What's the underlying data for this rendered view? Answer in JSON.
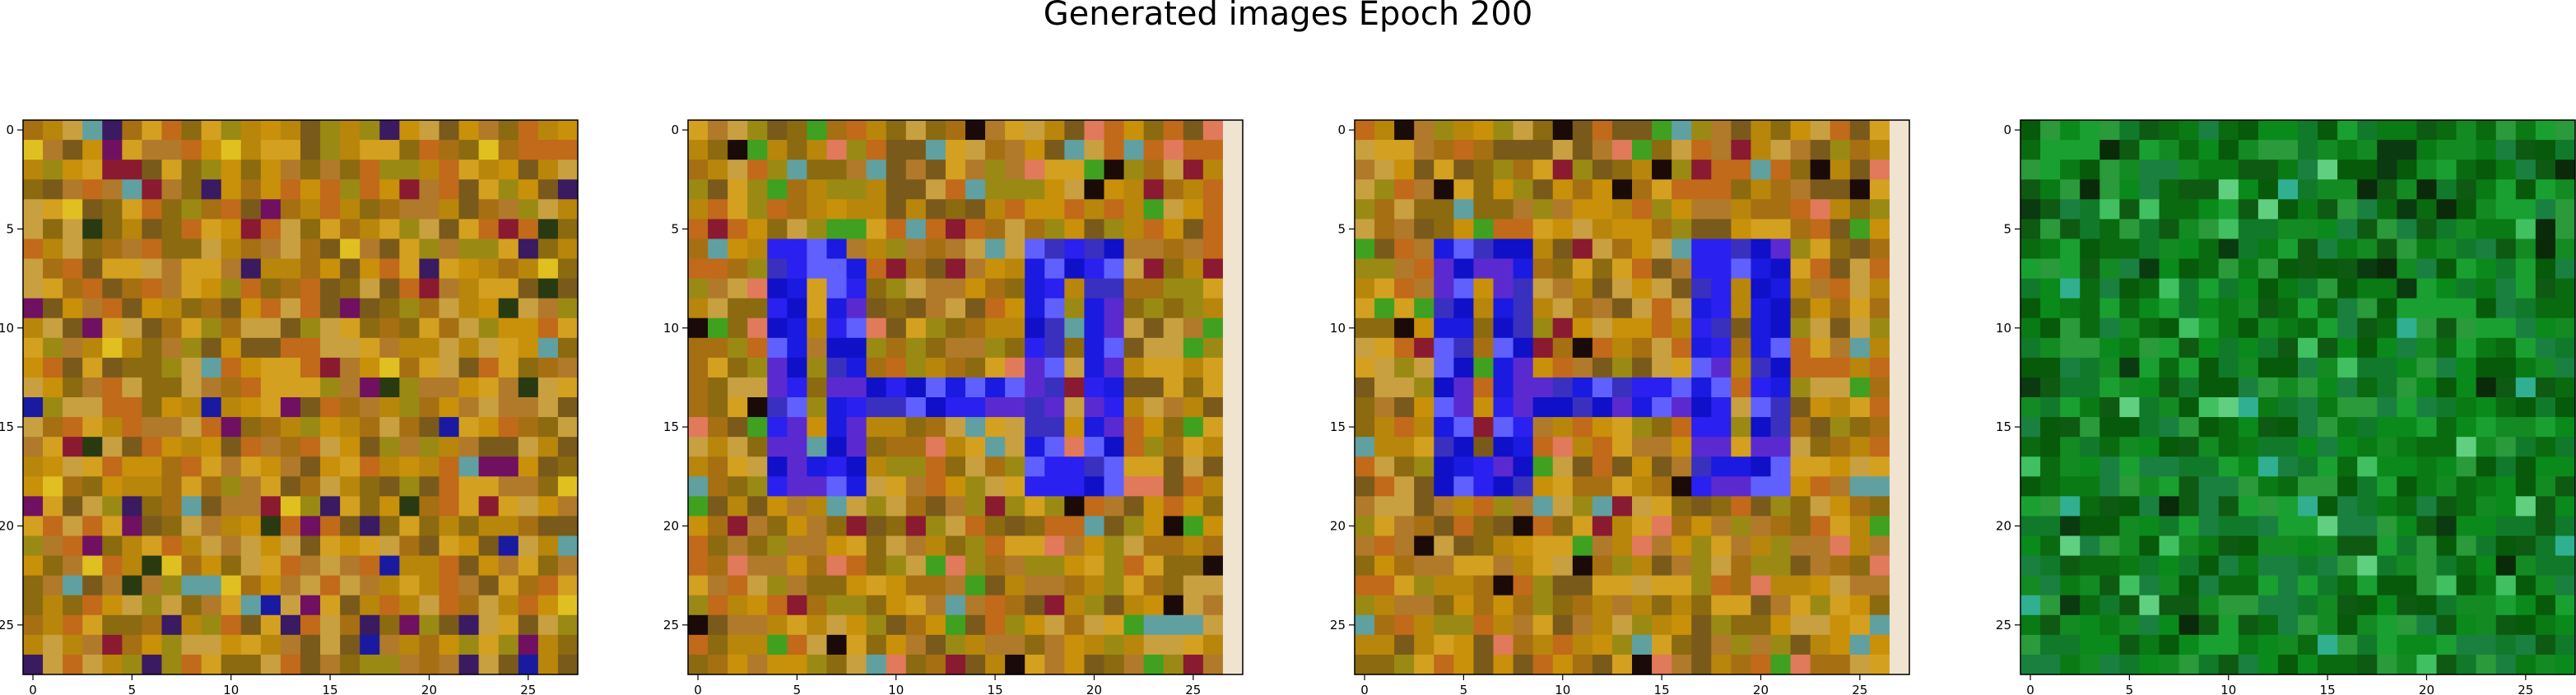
{
  "figure": {
    "title": "Generated images Epoch 200"
  },
  "chart_data": [
    {
      "type": "heatmap",
      "description_id": "panel-1",
      "grid_size": [
        28,
        28
      ],
      "x_ticks": [
        0,
        5,
        10,
        15,
        20,
        25
      ],
      "y_ticks": [
        0,
        5,
        10,
        15,
        20,
        25
      ],
      "xlim": [
        -0.5,
        27.5
      ],
      "ylim": [
        27.5,
        -0.5
      ],
      "palette": [
        "#b8860b",
        "#c9900a",
        "#a66f12",
        "#d4a020",
        "#8b6a10",
        "#b07a2a",
        "#c06a1a",
        "#9a8a14",
        "#c8a040",
        "#7a5a1a"
      ],
      "accents": [
        "#8a1a30",
        "#3a1a60",
        "#1a1aa0",
        "#701060",
        "#e0c020",
        "#60a0a0",
        "#2a3a10"
      ],
      "accent_rate": 0.12,
      "seed": 11
    },
    {
      "type": "heatmap",
      "description_id": "panel-2",
      "grid_size": [
        28,
        28
      ],
      "x_ticks": [
        0,
        5,
        10,
        15,
        20,
        25
      ],
      "y_ticks": [
        0,
        5,
        10,
        15,
        20,
        25
      ],
      "xlim": [
        -0.5,
        27.5
      ],
      "ylim": [
        27.5,
        -0.5
      ],
      "palette": [
        "#b8860b",
        "#c9900a",
        "#a66f12",
        "#d4a020",
        "#8b6a10",
        "#b07a2a",
        "#c06a1a",
        "#9a8a14",
        "#c8a040",
        "#7a5a1a"
      ],
      "accents": [
        "#8a1a30",
        "#1a0a08",
        "#e07a5a",
        "#40a020",
        "#60a0a0"
      ],
      "accent_rate": 0.1,
      "glyph_colors": [
        "#1a1ae0",
        "#2a20f0",
        "#3a30c0",
        "#6060ff",
        "#1010c8",
        "#5a2ad0"
      ],
      "glyph_rows": [
        "                            ",
        "                            ",
        "                            ",
        "                            ",
        "                            ",
        "                            ",
        "    ####         #####      ",
        "    #####        #####      ",
        "    ## ##        ## ##      ",
        "    ## ##        ## ##      ",
        "    ## ##        ## ##      ",
        "    ## ##        ## ##      ",
        "    ## ##        ## ##      ",
        "    ## ############ ##      ",
        "    ## ############ ##      ",
        "    ## ##        ## ##      ",
        "    ## ##        ## ##      ",
        "    #####        #####      ",
        "    #####        #####      ",
        "                            ",
        "                            ",
        "                            ",
        "                            ",
        "                            ",
        "                            ",
        "                            ",
        "                            ",
        "                            "
      ],
      "right_column_color": "#f0e4d0",
      "seed": 23
    },
    {
      "type": "heatmap",
      "description_id": "panel-3",
      "grid_size": [
        28,
        28
      ],
      "x_ticks": [
        0,
        5,
        10,
        15,
        20,
        25
      ],
      "y_ticks": [
        0,
        5,
        10,
        15,
        20,
        25
      ],
      "xlim": [
        -0.5,
        27.5
      ],
      "ylim": [
        27.5,
        -0.5
      ],
      "palette": [
        "#b8860b",
        "#c9900a",
        "#a66f12",
        "#d4a020",
        "#8b6a10",
        "#b07a2a",
        "#c06a1a",
        "#9a8a14",
        "#c8a040",
        "#7a5a1a"
      ],
      "accents": [
        "#8a1a30",
        "#1a0a08",
        "#e07a5a",
        "#40a020",
        "#60a0a0"
      ],
      "accent_rate": 0.1,
      "glyph_colors": [
        "#1a1ae0",
        "#2a20f0",
        "#3a30c0",
        "#6060ff",
        "#1010c8",
        "#5a2ad0"
      ],
      "glyph_rows": [
        "                            ",
        "                            ",
        "                            ",
        "                            ",
        "                            ",
        "                            ",
        "    #####        #####      ",
        "    #####        #####      ",
        "    ## ##        ## ##      ",
        "    ## ##        ## ##      ",
        "    ## ##        ## ##      ",
        "    ## ##        ## ##      ",
        "    ## ##        ## ##      ",
        "    ## ############ ##      ",
        "    ## ############ ##      ",
        "    ## ##        ## ##      ",
        "    ## ##        ## ##      ",
        "    #####        #####      ",
        "    #####        #####      ",
        "                            ",
        "                            ",
        "                            ",
        "                            ",
        "                            ",
        "                            ",
        "                            ",
        "                            ",
        "                            "
      ],
      "right_column_color": "#f0e4d0",
      "seed": 37
    },
    {
      "type": "heatmap",
      "description_id": "panel-4",
      "grid_size": [
        28,
        28
      ],
      "x_ticks": [
        0,
        5,
        10,
        15,
        20,
        25
      ],
      "y_ticks": [
        0,
        5,
        10,
        15,
        20,
        25
      ],
      "xlim": [
        -0.5,
        27.5
      ],
      "ylim": [
        27.5,
        -0.5
      ],
      "palette": [
        "#0a7a14",
        "#148a22",
        "#0a6a10",
        "#1aa030",
        "#0e5a12",
        "#2a9a3a",
        "#107a2a",
        "#0a8a1a",
        "#1a8040",
        "#065a0a"
      ],
      "accents": [
        "#40c060",
        "#0a3a10",
        "#30b090",
        "#60d080",
        "#0a2a0a"
      ],
      "accent_rate": 0.1,
      "seed": 51
    }
  ]
}
